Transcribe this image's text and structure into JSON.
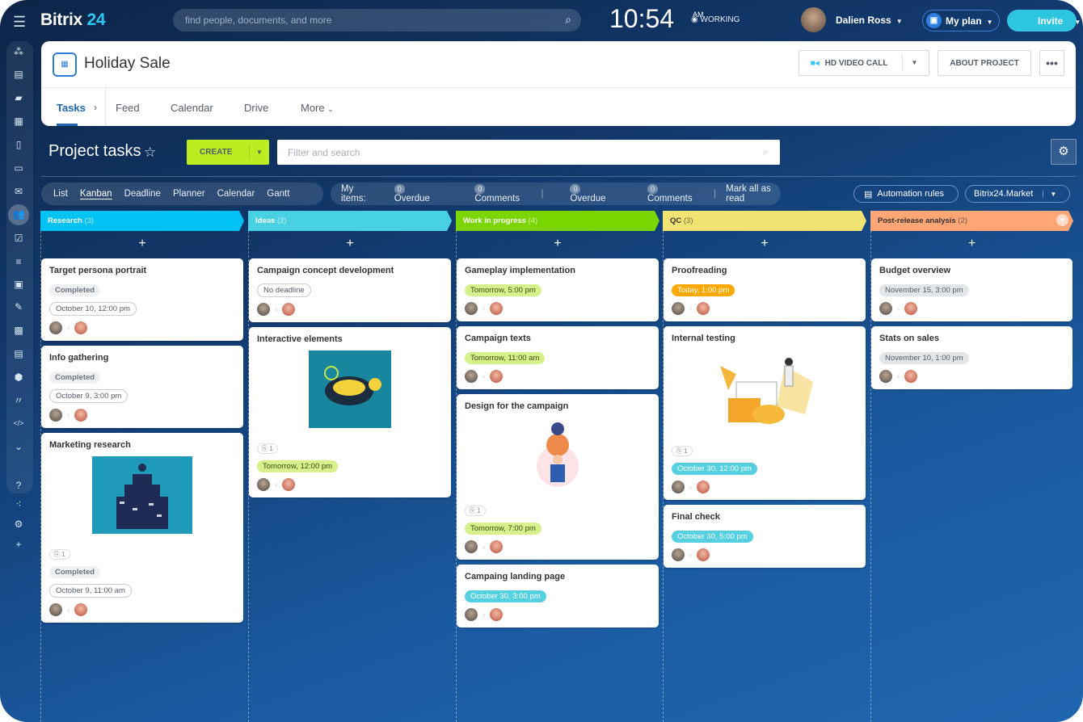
{
  "topbar": {
    "app_name": "Bitrix",
    "app_num": "24",
    "search_placeholder": "find people, documents, and more",
    "time": "10:54",
    "ampm": "AM",
    "work_status": "WORKING",
    "user_name": "Dalien Ross",
    "my_plan": "My plan",
    "invite": "Invite"
  },
  "sidebar": {
    "icons": [
      "flow-icon",
      "news-icon",
      "chat-icon",
      "calendar-icon",
      "document-icon",
      "drive-icon",
      "mail-icon",
      "groups-icon",
      "tasks-icon",
      "crm-filter-icon",
      "sites-icon",
      "sign-icon",
      "contacts-icon",
      "robot-icon",
      "store-icon",
      "marketplace-icon",
      "developer-icon",
      "more-icon",
      "help-icon",
      "structure-icon",
      "settings-icon",
      "add-icon"
    ]
  },
  "header": {
    "title": "Holiday Sale",
    "video_call": "HD VIDEO CALL",
    "about": "ABOUT PROJECT",
    "tabs": [
      "Tasks",
      "Feed",
      "Calendar",
      "Drive",
      "More"
    ]
  },
  "toolbar": {
    "title": "Project tasks",
    "create": "CREATE",
    "filter_placeholder": "Filter and search"
  },
  "views": [
    "List",
    "Kanban",
    "Deadline",
    "Planner",
    "Calendar",
    "Gantt"
  ],
  "counters": {
    "my_items": "My items:",
    "overdue1": "0",
    "overdue_label": "Overdue",
    "comments1": "0",
    "comments_label": "Comments",
    "overdue2": "0",
    "comments2": "0",
    "mark_read": "Mark all as read"
  },
  "automation": "Automation rules",
  "market": "Bitrix24.Market",
  "colors": {
    "research": "#00c2f3",
    "ideas": "#47d1e2",
    "wip": "#7bd500",
    "qc": "#f1e372",
    "post": "#ffa576"
  },
  "columns": [
    {
      "name": "Research",
      "count": "(3)",
      "color": "#00c2f3",
      "text": "#fff",
      "cards": [
        {
          "title": "Target persona portrait",
          "status": "Completed",
          "deadline": "October 10, 12:00 pm",
          "style": "outline"
        },
        {
          "title": "Info gathering",
          "status": "Completed",
          "deadline": "October 9, 3:00 pm",
          "style": "outline"
        },
        {
          "title": "Marketing research",
          "status": "Completed",
          "image": "research",
          "attachments": "1",
          "deadline": "October 9, 11:00 am",
          "style": "outline"
        }
      ]
    },
    {
      "name": "Ideas",
      "count": "(2)",
      "color": "#47d1e2",
      "text": "#fff",
      "cards": [
        {
          "title": "Campaign concept development",
          "deadline": "No deadline",
          "style": "outline"
        },
        {
          "title": "Interactive elements",
          "image": "quiz",
          "attachments": "1",
          "deadline": "Tomorrow, 12:00 pm",
          "style": "green"
        }
      ]
    },
    {
      "name": "Work in progress",
      "count": "(4)",
      "color": "#7bd500",
      "text": "#fff",
      "cards": [
        {
          "title": "Gameplay implementation",
          "deadline": "Tomorrow, 5:00 pm",
          "style": "green"
        },
        {
          "title": "Campaign texts",
          "deadline": "Tomorrow, 11:00 am",
          "style": "green"
        },
        {
          "title": "Design for the campaign",
          "image": "design",
          "attachments": "1",
          "deadline": "Tomorrow, 7:00 pm",
          "style": "green"
        },
        {
          "title": "Campaing landing page",
          "deadline": "October 30, 3:00 pm",
          "style": "teal"
        }
      ]
    },
    {
      "name": "QC",
      "count": "(3)",
      "color": "#f1e372",
      "text": "#333",
      "cards": [
        {
          "title": "Proofreading",
          "deadline": "Today, 1:00 pm",
          "style": "orange"
        },
        {
          "title": "Internal testing",
          "image": "testing",
          "attachments": "1",
          "deadline": "October 30, 12:00 pm",
          "style": "teal"
        },
        {
          "title": "Final check",
          "deadline": "October 30, 5:00 pm",
          "style": "teal"
        }
      ]
    },
    {
      "name": "Post-release analysis",
      "count": "(2)",
      "color": "#ffa576",
      "text": "#333",
      "cards": [
        {
          "title": "Budget overview",
          "deadline": "November 15, 3:00 pm",
          "style": "gray"
        },
        {
          "title": "Stats on sales",
          "deadline": "November 10, 1:00 pm",
          "style": "gray"
        }
      ]
    }
  ]
}
